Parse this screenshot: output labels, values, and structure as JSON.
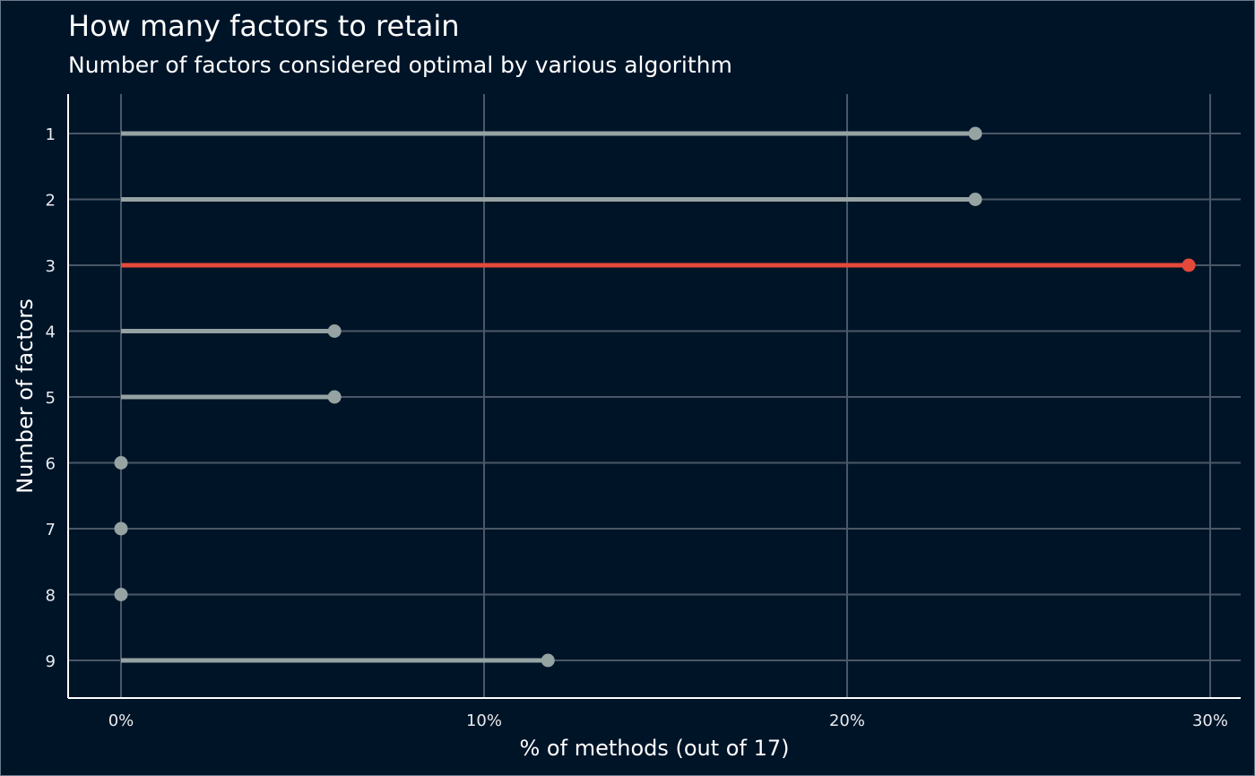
{
  "chart_data": {
    "type": "lollipop",
    "title": "How many factors to retain",
    "subtitle": "Number of factors considered optimal by various algorithm",
    "xlabel": "% of methods (out of 17)",
    "ylabel": "Number of factors",
    "xlim": [
      0,
      0.3
    ],
    "xticks": [
      0,
      0.1,
      0.2,
      0.3
    ],
    "xtick_labels": [
      "0%",
      "10%",
      "20%",
      "30%"
    ],
    "categories": [
      "1",
      "2",
      "3",
      "4",
      "5",
      "6",
      "7",
      "8",
      "9"
    ],
    "values": [
      0.2353,
      0.2353,
      0.2941,
      0.0588,
      0.0588,
      0,
      0,
      0,
      0.1176
    ],
    "highlight_index": 2,
    "grid": true,
    "colors": {
      "background": "#001428",
      "default": "#96a3a3",
      "highlight": "#e5493a",
      "grid": "#4b5766",
      "axis": "#ffffff"
    }
  }
}
